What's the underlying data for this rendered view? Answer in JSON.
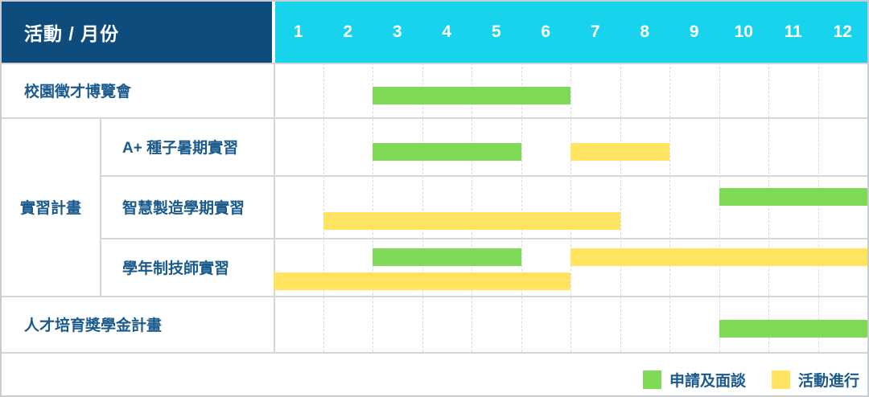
{
  "header": {
    "corner_label": "活動 / 月份",
    "months": [
      "1",
      "2",
      "3",
      "4",
      "5",
      "6",
      "7",
      "8",
      "9",
      "10",
      "11",
      "12"
    ]
  },
  "colors": {
    "corner_bg": "#0E4C7E",
    "month_band_bg": "#17D3EB",
    "green": "#7ED957",
    "yellow": "#FFE361",
    "label_text": "#1A5A8C"
  },
  "legend": {
    "items": [
      {
        "label": "申請及面談",
        "color": "green"
      },
      {
        "label": "活動進行",
        "color": "yellow"
      }
    ]
  },
  "chart_data": {
    "type": "gantt",
    "unit": "month",
    "x_range": [
      1,
      12
    ],
    "months": [
      1,
      2,
      3,
      4,
      5,
      6,
      7,
      8,
      9,
      10,
      11,
      12
    ],
    "group_label": "實習計畫",
    "series_meaning": {
      "green": "申請及面談",
      "yellow": "活動進行"
    },
    "rows": [
      {
        "group": "",
        "label": "校園徵才博覽會",
        "bars": [
          {
            "color": "green",
            "start_month": 3,
            "end_month": 6,
            "lane": 0
          }
        ]
      },
      {
        "group": "實習計畫",
        "label": "A+ 種子暑期實習",
        "bars": [
          {
            "color": "green",
            "start_month": 3,
            "end_month": 5,
            "lane": 0
          },
          {
            "color": "yellow",
            "start_month": 7,
            "end_month": 8,
            "lane": 0
          }
        ]
      },
      {
        "group": "實習計畫",
        "label": "智慧製造學期實習",
        "bars": [
          {
            "color": "green",
            "start_month": 10,
            "end_month": 12,
            "lane": 0
          },
          {
            "color": "yellow",
            "start_month": 2,
            "end_month": 7,
            "lane": 1
          }
        ]
      },
      {
        "group": "實習計畫",
        "label": "學年制技師實習",
        "bars": [
          {
            "color": "green",
            "start_month": 3,
            "end_month": 5,
            "lane": 0
          },
          {
            "color": "yellow",
            "start_month": 7,
            "end_month": 12,
            "lane": 0
          },
          {
            "color": "yellow",
            "start_month": 1,
            "end_month": 6,
            "lane": 1
          }
        ]
      },
      {
        "group": "",
        "label": "人才培育獎學金計畫",
        "bars": [
          {
            "color": "green",
            "start_month": 10,
            "end_month": 12,
            "lane": 0
          }
        ]
      }
    ]
  }
}
